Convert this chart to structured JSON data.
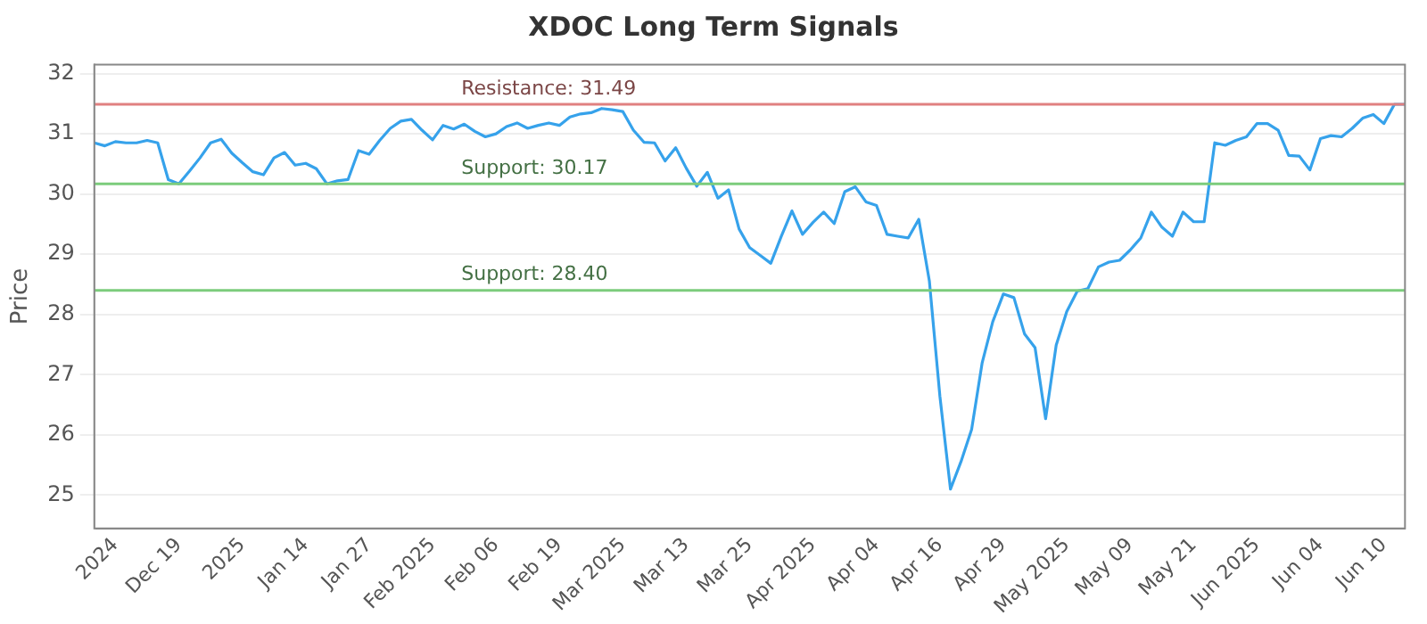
{
  "chart_data": {
    "type": "line",
    "title": "XDOC Long Term Signals",
    "ylabel": "Price",
    "categories": [
      null,
      null,
      "2024",
      null,
      null,
      null,
      null,
      null,
      "Dec 19",
      null,
      null,
      null,
      null,
      null,
      "2025",
      null,
      null,
      null,
      null,
      null,
      "Jan 14",
      null,
      null,
      null,
      null,
      null,
      "Jan 27",
      null,
      null,
      null,
      null,
      null,
      "Feb 2025",
      null,
      null,
      null,
      null,
      null,
      "Feb 06",
      null,
      null,
      null,
      null,
      null,
      "Feb 19",
      null,
      null,
      null,
      null,
      null,
      "Mar 2025",
      null,
      null,
      null,
      null,
      null,
      "Mar 13",
      null,
      null,
      null,
      null,
      null,
      "Mar 25",
      null,
      null,
      null,
      null,
      null,
      "Apr 2025",
      null,
      null,
      null,
      null,
      null,
      "Apr 04",
      null,
      null,
      null,
      null,
      null,
      "Apr 16",
      null,
      null,
      null,
      null,
      null,
      "Apr 29",
      null,
      null,
      null,
      null,
      null,
      "May 2025",
      null,
      null,
      null,
      null,
      null,
      "May 09",
      null,
      null,
      null,
      null,
      null,
      "May 21",
      null,
      null,
      null,
      null,
      null,
      "Jun 2025",
      null,
      null,
      null,
      null,
      null,
      "Jun 04",
      null,
      null,
      null,
      null,
      null,
      "Jun 10",
      null,
      null
    ],
    "series": [
      {
        "color": "#36a2eb",
        "values": [
          30.85,
          30.8,
          30.87,
          30.85,
          30.85,
          30.89,
          30.85,
          30.24,
          30.17,
          30.38,
          30.6,
          30.85,
          30.91,
          30.68,
          30.52,
          30.37,
          30.32,
          30.6,
          30.69,
          30.48,
          30.51,
          30.42,
          30.17,
          30.22,
          30.24,
          30.72,
          30.66,
          30.89,
          31.09,
          31.21,
          31.24,
          31.06,
          30.9,
          31.14,
          31.08,
          31.16,
          31.04,
          30.95,
          31.0,
          31.12,
          31.18,
          31.09,
          31.14,
          31.18,
          31.14,
          31.28,
          31.33,
          31.35,
          31.42,
          31.4,
          31.37,
          31.06,
          30.86,
          30.85,
          30.55,
          30.77,
          30.43,
          30.13,
          30.36,
          29.93,
          30.07,
          29.42,
          29.11,
          28.98,
          28.85,
          29.3,
          29.72,
          29.33,
          29.53,
          29.7,
          29.51,
          30.04,
          30.12,
          29.87,
          29.81,
          29.33,
          29.3,
          29.27,
          29.58,
          28.56,
          26.64,
          25.1,
          25.56,
          26.09,
          27.2,
          27.88,
          28.34,
          28.28,
          27.68,
          27.45,
          26.27,
          27.49,
          28.05,
          28.39,
          28.43,
          28.79,
          28.87,
          28.9,
          29.07,
          29.27,
          29.7,
          29.45,
          29.3,
          29.7,
          29.54,
          29.54,
          30.85,
          30.81,
          30.89,
          30.95,
          31.17,
          31.17,
          31.06,
          30.64,
          30.63,
          30.4,
          30.92,
          30.97,
          30.95,
          31.09,
          31.26,
          31.32,
          31.17,
          31.49,
          31.49
        ]
      }
    ],
    "ylim": [
      24.45,
      32.15
    ],
    "yticks": [
      25,
      26,
      27,
      28,
      29,
      30,
      31,
      32
    ],
    "grid": "y",
    "marker": "none",
    "line_style": "solid",
    "legend": false,
    "ref_lines": [
      {
        "axis": "y",
        "value": 31.49,
        "label": "Resistance: 31.49",
        "color": "#e08080"
      },
      {
        "axis": "y",
        "value": 30.17,
        "label": "Support: 30.17",
        "color": "#7ccc7c"
      },
      {
        "axis": "y",
        "value": 28.4,
        "label": "Support: 28.40",
        "color": "#7ccc7c"
      }
    ]
  }
}
